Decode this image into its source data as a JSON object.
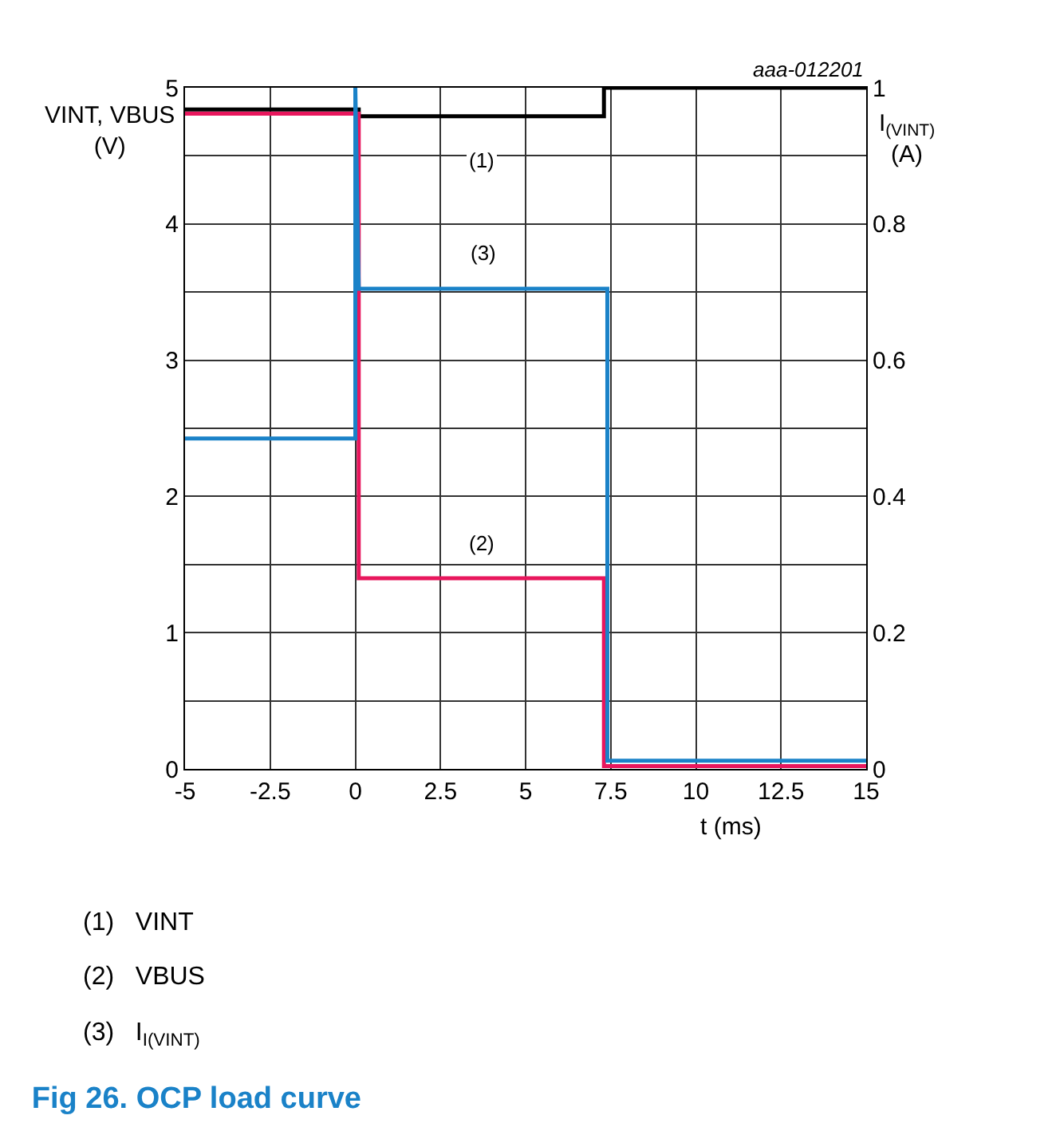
{
  "chart_data": {
    "type": "line",
    "title": "Fig 26. OCP load curve",
    "xlabel": "t (ms)",
    "ylabel": "VINT, VBUS\n(V)",
    "y2label": "I$_{(VINT)}$\n(A)",
    "series": [
      {
        "name": "VINT",
        "color": "#000000",
        "x": [
          -5,
          0.1,
          0.1,
          7.3,
          7.3,
          15
        ],
        "values": [
          4.84,
          4.84,
          4.79,
          4.79,
          5.0,
          5.0
        ]
      },
      {
        "name": "VBUS",
        "color": "#e8175d",
        "x": [
          -5,
          0.1,
          0.1,
          7.3,
          7.3,
          15
        ],
        "values": [
          4.81,
          4.81,
          1.4,
          1.4,
          0.02,
          0.02
        ]
      },
      {
        "name": "I$_{I(VINT)}$",
        "color": "#1a82c8",
        "axis": "y2",
        "x": [
          -5,
          0,
          0,
          0.1,
          7.4,
          7.4,
          15
        ],
        "values": [
          0.485,
          0.485,
          1.0,
          0.705,
          0.705,
          0.012,
          0.012
        ]
      }
    ],
    "annotations": [
      "(1)",
      "(2)",
      "(3)",
      "aaa-012201"
    ],
    "xlim": [
      -5,
      15
    ],
    "xticks": [
      -5,
      -2.5,
      0,
      2.5,
      5,
      7.5,
      10,
      12.5,
      15
    ],
    "ylim": [
      0,
      5
    ],
    "yticks": [
      0,
      {
        "value": 0.5,
        "label": null
      },
      1,
      {
        "value": 1.5,
        "label": null
      },
      2,
      {
        "value": 2.5,
        "label": null
      },
      3,
      {
        "value": 3.5,
        "label": null
      },
      4,
      {
        "value": 4.5,
        "label": null
      },
      5
    ],
    "y2lim": [
      0,
      1
    ],
    "y2ticks": [
      0,
      0.2,
      0.4,
      0.6,
      0.8,
      1
    ],
    "grid": true,
    "legend": false,
    "line_style": "solid",
    "marker": "none"
  }
}
